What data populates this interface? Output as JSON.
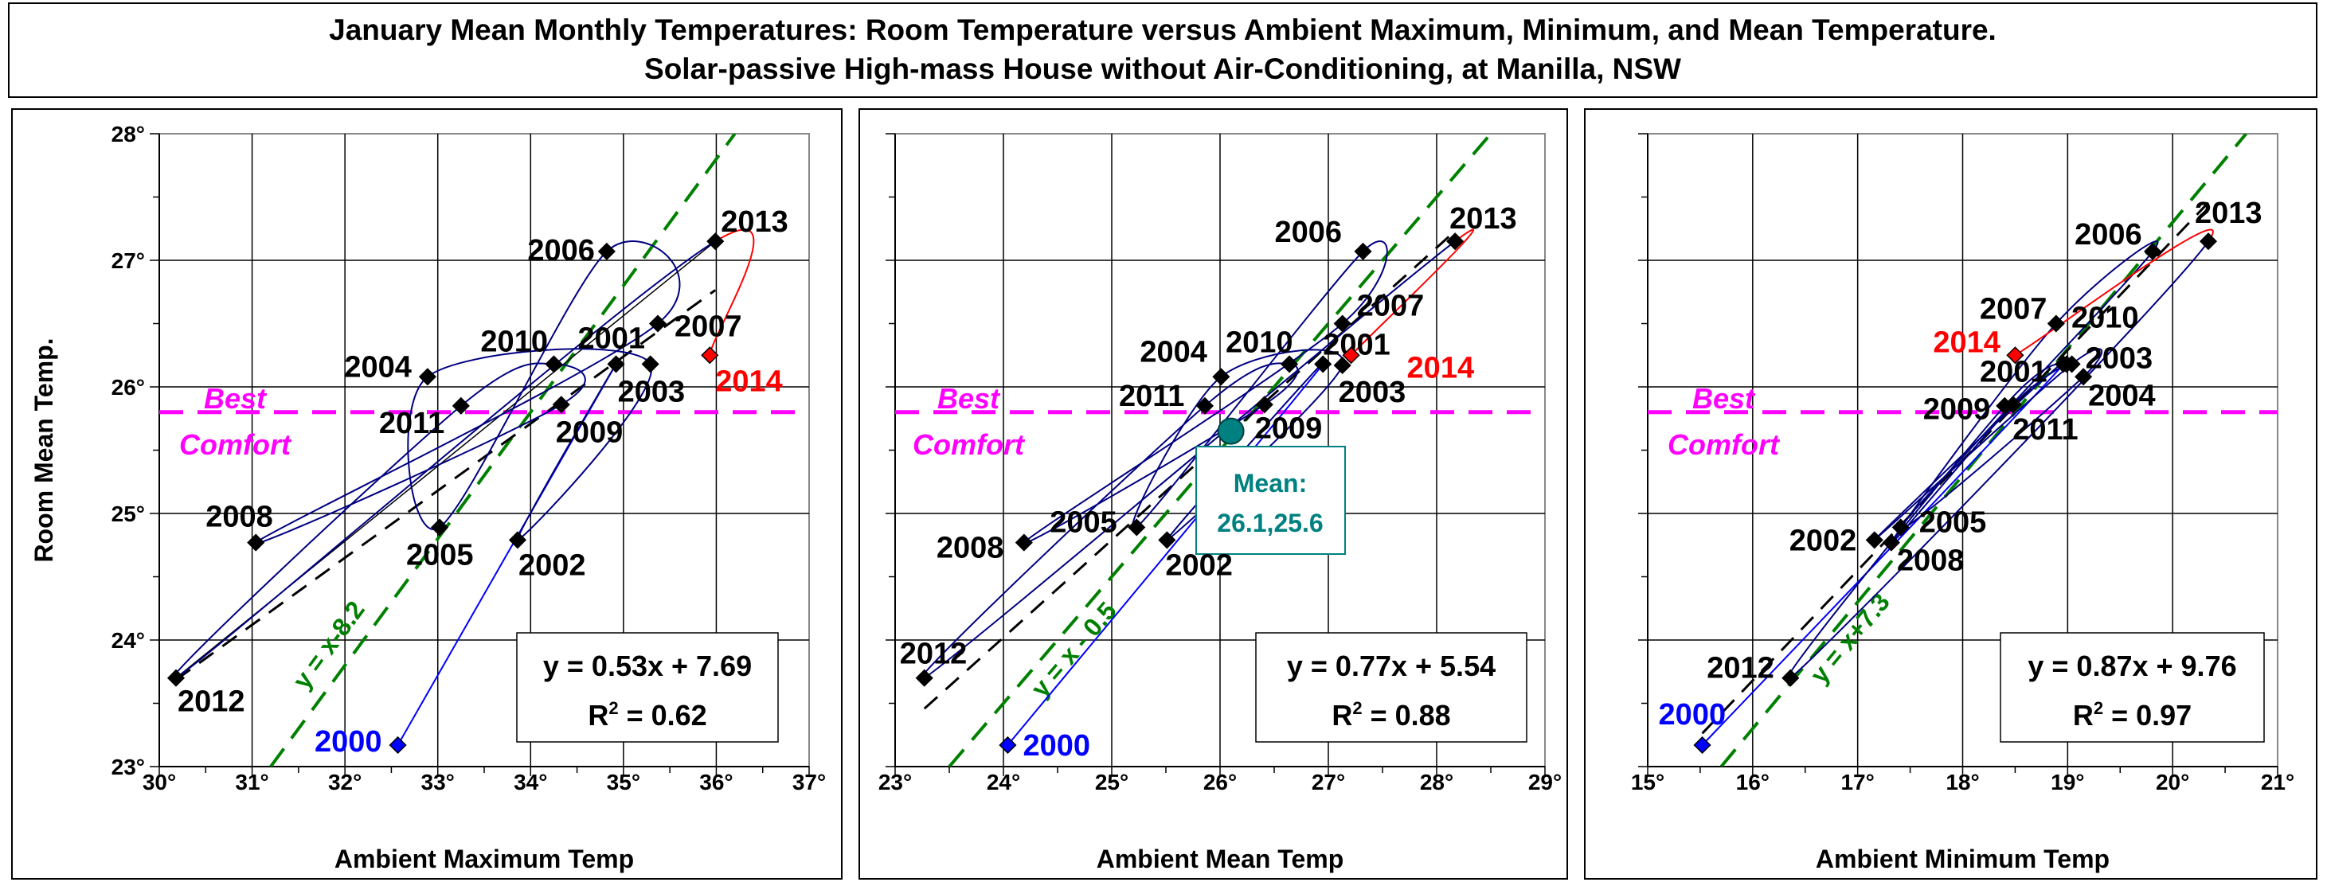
{
  "title": {
    "line1": "January Mean Monthly Temperatures: Room Temperature versus Ambient Maximum, Minimum, and Mean Temperature.",
    "line2": "Solar-passive High-mass House without Air-Conditioning, at Manilla, NSW"
  },
  "colors": {
    "path": "#000080",
    "first_year": "#0000FF",
    "latest_year": "#FF0000",
    "comfort": "#FF00FF",
    "reference": "#008000",
    "mean": "#008080",
    "points": "#000000"
  },
  "chart_data": [
    {
      "type": "scatter",
      "xlabel": "Ambient Maximum Temp",
      "ylabel": "Room Mean Temp.",
      "xlim": [
        30,
        37
      ],
      "ylim": [
        23,
        28
      ],
      "xticks": [
        "30°",
        "31°",
        "32°",
        "33°",
        "34°",
        "35°",
        "36°",
        "37°"
      ],
      "yticks": [
        "23°",
        "24°",
        "25°",
        "26°",
        "27°",
        "28°"
      ],
      "grid": true,
      "points": [
        {
          "label": "2000",
          "x": 32.57,
          "y": 23.17
        },
        {
          "label": "2001",
          "x": 34.92,
          "y": 26.18
        },
        {
          "label": "2002",
          "x": 33.86,
          "y": 24.79
        },
        {
          "label": "2003",
          "x": 35.29,
          "y": 26.18
        },
        {
          "label": "2004",
          "x": 32.89,
          "y": 26.08
        },
        {
          "label": "2005",
          "x": 33.02,
          "y": 24.89
        },
        {
          "label": "2006",
          "x": 34.82,
          "y": 27.07
        },
        {
          "label": "2007",
          "x": 35.37,
          "y": 26.5
        },
        {
          "label": "2008",
          "x": 31.04,
          "y": 24.77
        },
        {
          "label": "2009",
          "x": 34.33,
          "y": 25.86
        },
        {
          "label": "2010",
          "x": 34.25,
          "y": 26.18
        },
        {
          "label": "2011",
          "x": 33.25,
          "y": 25.85
        },
        {
          "label": "2012",
          "x": 30.18,
          "y": 23.7
        },
        {
          "label": "2013",
          "x": 35.99,
          "y": 27.15
        },
        {
          "label": "2014",
          "x": 35.93,
          "y": 26.25
        }
      ],
      "trendline": {
        "slope": 0.53,
        "intercept": 7.69,
        "equation": "y = 0.53x + 7.69",
        "r2_symbol": "R",
        "r2_sup": "2",
        "r2_value": " = 0.62"
      },
      "reference_line": {
        "offset": -8.2,
        "label": "y = x-8.2"
      },
      "comfort": {
        "value": 25.8,
        "label1": "Best",
        "label2": "Comfort"
      }
    },
    {
      "type": "scatter",
      "xlabel": "Ambient Mean Temp",
      "ylabel": "",
      "xlim": [
        23,
        29
      ],
      "ylim": [
        23,
        28
      ],
      "xticks": [
        "23°",
        "24°",
        "25°",
        "26°",
        "27°",
        "28°",
        "29°"
      ],
      "yticks": [],
      "grid": true,
      "points": [
        {
          "label": "2000",
          "x": 24.04,
          "y": 23.17
        },
        {
          "label": "2001",
          "x": 26.95,
          "y": 26.18
        },
        {
          "label": "2002",
          "x": 25.51,
          "y": 24.79
        },
        {
          "label": "2003",
          "x": 27.13,
          "y": 26.17
        },
        {
          "label": "2004",
          "x": 26.01,
          "y": 26.08
        },
        {
          "label": "2005",
          "x": 25.23,
          "y": 24.89
        },
        {
          "label": "2006",
          "x": 27.32,
          "y": 27.07
        },
        {
          "label": "2007",
          "x": 27.13,
          "y": 26.5
        },
        {
          "label": "2008",
          "x": 24.19,
          "y": 24.77
        },
        {
          "label": "2009",
          "x": 26.41,
          "y": 25.86
        },
        {
          "label": "2010",
          "x": 26.64,
          "y": 26.18
        },
        {
          "label": "2011",
          "x": 25.86,
          "y": 25.85
        },
        {
          "label": "2012",
          "x": 23.27,
          "y": 23.7
        },
        {
          "label": "2013",
          "x": 28.17,
          "y": 27.15
        },
        {
          "label": "2014",
          "x": 27.21,
          "y": 26.25
        }
      ],
      "mean": {
        "x": 26.1,
        "y": 25.6,
        "label1": "Mean:",
        "label2": "26.1,25.6"
      },
      "trendline": {
        "slope": 0.77,
        "intercept": 5.54,
        "equation": "y = 0.77x + 5.54",
        "r2_symbol": "R",
        "r2_sup": "2",
        "r2_value": " = 0.88"
      },
      "reference_line": {
        "offset": -0.5,
        "label": "y = x - 0.5"
      },
      "comfort": {
        "value": 25.8,
        "label1": "Best",
        "label2": "Comfort"
      }
    },
    {
      "type": "scatter",
      "xlabel": "Ambient Minimum Temp",
      "ylabel": "",
      "xlim": [
        15,
        21
      ],
      "ylim": [
        23,
        28
      ],
      "xticks": [
        "15°",
        "16°",
        "17°",
        "18°",
        "19°",
        "20°",
        "21°"
      ],
      "yticks": [],
      "grid": true,
      "points": [
        {
          "label": "2000",
          "x": 15.52,
          "y": 23.17
        },
        {
          "label": "2001",
          "x": 18.96,
          "y": 26.18
        },
        {
          "label": "2002",
          "x": 17.16,
          "y": 24.79
        },
        {
          "label": "2003",
          "x": 19.04,
          "y": 26.18
        },
        {
          "label": "2004",
          "x": 19.15,
          "y": 26.08
        },
        {
          "label": "2005",
          "x": 17.41,
          "y": 24.89
        },
        {
          "label": "2006",
          "x": 19.81,
          "y": 27.07
        },
        {
          "label": "2007",
          "x": 18.89,
          "y": 26.5
        },
        {
          "label": "2008",
          "x": 17.32,
          "y": 24.77
        },
        {
          "label": "2009",
          "x": 18.48,
          "y": 25.86
        },
        {
          "label": "2010",
          "x": 18.99,
          "y": 26.18
        },
        {
          "label": "2011",
          "x": 18.4,
          "y": 25.85
        },
        {
          "label": "2012",
          "x": 16.36,
          "y": 23.7
        },
        {
          "label": "2013",
          "x": 20.34,
          "y": 27.15
        },
        {
          "label": "2014",
          "x": 18.5,
          "y": 26.25
        }
      ],
      "trendline": {
        "slope": 0.87,
        "intercept": 9.76,
        "equation": "y = 0.87x + 9.76",
        "r2_symbol": "R",
        "r2_sup": "2",
        "r2_value": " = 0.97"
      },
      "reference_line": {
        "offset": 7.3,
        "label": "y = x+7.3"
      },
      "comfort": {
        "value": 25.8,
        "label1": "Best",
        "label2": "Comfort"
      }
    }
  ]
}
